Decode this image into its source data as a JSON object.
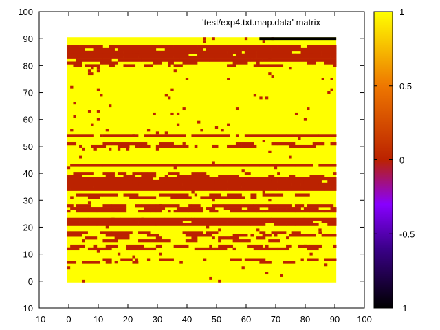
{
  "chart_data": {
    "type": "heatmap",
    "title": "'test/exp4.txt.map.data' matrix",
    "xlabel": "",
    "ylabel": "",
    "xlim": [
      -10,
      100
    ],
    "ylim": [
      -10,
      100
    ],
    "x_ticks": [
      "-10",
      "0",
      "10",
      "20",
      "30",
      "40",
      "50",
      "60",
      "70",
      "80",
      "90",
      "100"
    ],
    "y_ticks": [
      "-10",
      "0",
      "10",
      "20",
      "30",
      "40",
      "50",
      "60",
      "70",
      "80",
      "90",
      "100"
    ],
    "x_tick_values": [
      -10,
      0,
      10,
      20,
      30,
      40,
      50,
      60,
      70,
      80,
      90,
      100
    ],
    "y_tick_values": [
      -10,
      0,
      10,
      20,
      30,
      40,
      50,
      60,
      70,
      80,
      90,
      100
    ],
    "grid": false,
    "matrix": {
      "x_range": [
        0,
        90
      ],
      "y_range": [
        0,
        90
      ],
      "value_yellow": 1,
      "value_red": 0,
      "value_black": -1,
      "dominant_value": 1,
      "red_bands": [
        {
          "y": [
            85,
            87
          ],
          "density": 0.75
        },
        {
          "y": [
            82,
            84
          ],
          "density": 0.8
        },
        {
          "y": [
            80,
            81
          ],
          "density": 0.3
        },
        {
          "y": [
            54,
            54
          ],
          "density": 0.9
        },
        {
          "y": [
            50,
            51
          ],
          "density": 0.4
        },
        {
          "y": [
            43,
            43
          ],
          "density": 0.85
        },
        {
          "y": [
            39,
            40
          ],
          "density": 0.5
        },
        {
          "y": [
            34,
            38
          ],
          "density": 0.95
        },
        {
          "y": [
            31,
            32
          ],
          "density": 0.45
        },
        {
          "y": [
            26,
            28
          ],
          "density": 0.7
        },
        {
          "y": [
            21,
            23
          ],
          "density": 0.85
        },
        {
          "y": [
            15,
            18
          ],
          "density": 0.35
        },
        {
          "y": [
            12,
            13
          ],
          "density": 0.4
        },
        {
          "y": [
            7,
            8
          ],
          "density": 0.2
        }
      ],
      "black_segment": {
        "y": 90,
        "x": [
          65,
          90
        ]
      }
    },
    "colorbar": {
      "range": [
        -1,
        1
      ],
      "ticks": [
        "1",
        "0.5",
        "0",
        "-0.5",
        "-1"
      ],
      "tick_values": [
        1,
        0.5,
        0,
        -0.5,
        -1
      ],
      "palette": [
        "#000000",
        "#3a0088",
        "#8800ff",
        "#bb2200",
        "#ee7700",
        "#ffff00"
      ]
    }
  }
}
